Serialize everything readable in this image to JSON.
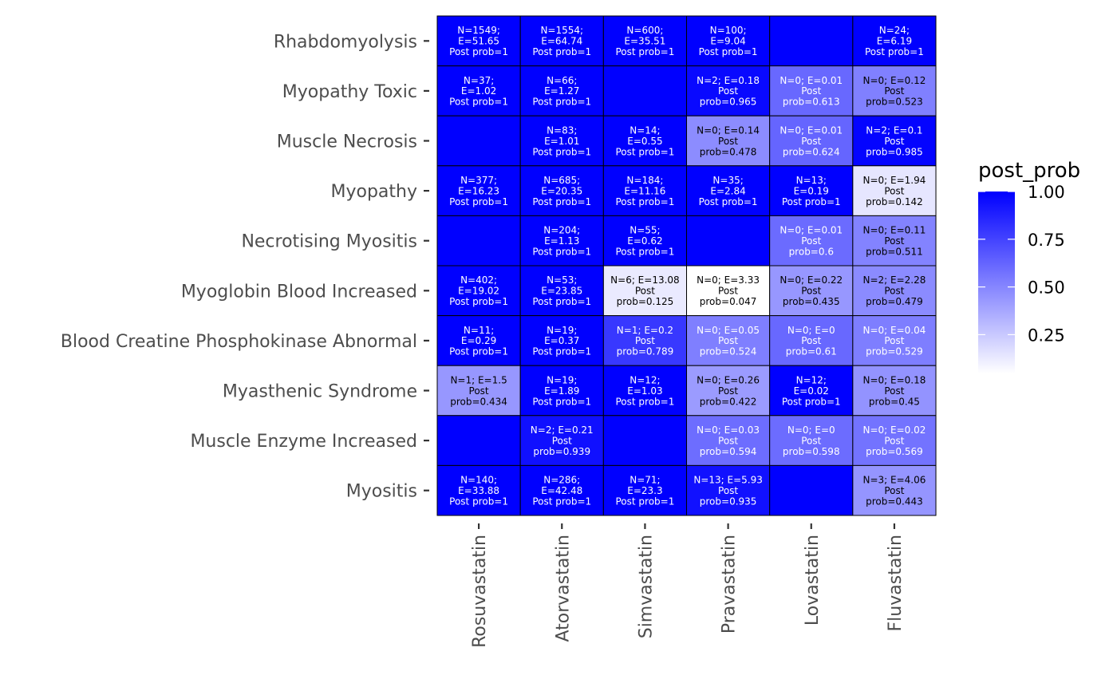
{
  "chart_data": {
    "type": "heatmap",
    "title": "",
    "xlabel": "",
    "ylabel": "",
    "x_categories": [
      "Rosuvastatin",
      "Atorvastatin",
      "Simvastatin",
      "Pravastatin",
      "Lovastatin",
      "Fluvastatin"
    ],
    "y_categories": [
      "Rhabdomyolysis",
      "Myopathy Toxic",
      "Muscle Necrosis",
      "Myopathy",
      "Necrotising Myositis",
      "Myoglobin Blood Increased",
      "Blood Creatine Phosphokinase Abnormal",
      "Myasthenic Syndrome",
      "Muscle Enzyme Increased",
      "Myositis"
    ],
    "values": [
      [
        1,
        1,
        1,
        1,
        1,
        1
      ],
      [
        1,
        1,
        1,
        0.965,
        0.613,
        0.523
      ],
      [
        1,
        1,
        1,
        0.478,
        0.624,
        0.985
      ],
      [
        1,
        1,
        1,
        1,
        1,
        0.142
      ],
      [
        1,
        1,
        1,
        1,
        0.6,
        0.511
      ],
      [
        1,
        1,
        0.125,
        0.047,
        0.435,
        0.479
      ],
      [
        1,
        1,
        0.789,
        0.524,
        0.61,
        0.529
      ],
      [
        0.434,
        1,
        1,
        0.422,
        1,
        0.45
      ],
      [
        1,
        0.939,
        1,
        0.594,
        0.598,
        0.569
      ],
      [
        1,
        1,
        1,
        0.935,
        1,
        0.443
      ]
    ],
    "labels": [
      [
        [
          "N=1549;",
          "E=51.65",
          "Post prob=1"
        ],
        [
          "N=1554;",
          "E=64.74",
          "Post prob=1"
        ],
        [
          "N=600;",
          "E=35.51",
          "Post prob=1"
        ],
        [
          "N=100;",
          "E=9.04",
          "Post prob=1"
        ],
        [],
        [
          "N=24;",
          "E=6.19",
          "Post prob=1"
        ]
      ],
      [
        [
          "N=37;",
          "E=1.02",
          "Post prob=1"
        ],
        [
          "N=66;",
          "E=1.27",
          "Post prob=1"
        ],
        [],
        [
          "N=2; E=0.18",
          "Post",
          "prob=0.965"
        ],
        [
          "N=0; E=0.01",
          "Post",
          "prob=0.613"
        ],
        [
          "N=0; E=0.12",
          "Post",
          "prob=0.523"
        ]
      ],
      [
        [],
        [
          "N=83;",
          "E=1.01",
          "Post prob=1"
        ],
        [
          "N=14;",
          "E=0.55",
          "Post prob=1"
        ],
        [
          "N=0; E=0.14",
          "Post",
          "prob=0.478"
        ],
        [
          "N=0; E=0.01",
          "Post",
          "prob=0.624"
        ],
        [
          "N=2; E=0.1",
          "Post",
          "prob=0.985"
        ]
      ],
      [
        [
          "N=377;",
          "E=16.23",
          "Post prob=1"
        ],
        [
          "N=685;",
          "E=20.35",
          "Post prob=1"
        ],
        [
          "N=184;",
          "E=11.16",
          "Post prob=1"
        ],
        [
          "N=35;",
          "E=2.84",
          "Post prob=1"
        ],
        [
          "N=13;",
          "E=0.19",
          "Post prob=1"
        ],
        [
          "N=0; E=1.94",
          "Post",
          "prob=0.142"
        ]
      ],
      [
        [],
        [
          "N=204;",
          "E=1.13",
          "Post prob=1"
        ],
        [
          "N=55;",
          "E=0.62",
          "Post prob=1"
        ],
        [],
        [
          "N=0; E=0.01",
          "Post",
          "prob=0.6"
        ],
        [
          "N=0; E=0.11",
          "Post",
          "prob=0.511"
        ]
      ],
      [
        [
          "N=402;",
          "E=19.02",
          "Post prob=1"
        ],
        [
          "N=53;",
          "E=23.85",
          "Post prob=1"
        ],
        [
          "N=6; E=13.08",
          "Post",
          "prob=0.125"
        ],
        [
          "N=0; E=3.33",
          "Post",
          "prob=0.047"
        ],
        [
          "N=0; E=0.22",
          "Post",
          "prob=0.435"
        ],
        [
          "N=2; E=2.28",
          "Post",
          "prob=0.479"
        ]
      ],
      [
        [
          "N=11;",
          "E=0.29",
          "Post prob=1"
        ],
        [
          "N=19;",
          "E=0.37",
          "Post prob=1"
        ],
        [
          "N=1; E=0.2",
          "Post",
          "prob=0.789"
        ],
        [
          "N=0; E=0.05",
          "Post",
          "prob=0.524"
        ],
        [
          "N=0; E=0",
          "Post",
          "prob=0.61"
        ],
        [
          "N=0; E=0.04",
          "Post",
          "prob=0.529"
        ]
      ],
      [
        [
          "N=1; E=1.5",
          "Post",
          "prob=0.434"
        ],
        [
          "N=19;",
          "E=1.89",
          "Post prob=1"
        ],
        [
          "N=12;",
          "E=1.03",
          "Post prob=1"
        ],
        [
          "N=0; E=0.26",
          "Post",
          "prob=0.422"
        ],
        [
          "N=12;",
          "E=0.02",
          "Post prob=1"
        ],
        [
          "N=0; E=0.18",
          "Post",
          "prob=0.45"
        ]
      ],
      [
        [],
        [
          "N=2; E=0.21",
          "Post",
          "prob=0.939"
        ],
        [],
        [
          "N=0; E=0.03",
          "Post",
          "prob=0.594"
        ],
        [
          "N=0; E=0",
          "Post",
          "prob=0.598"
        ],
        [
          "N=0; E=0.02",
          "Post",
          "prob=0.569"
        ]
      ],
      [
        [
          "N=140;",
          "E=33.88",
          "Post prob=1"
        ],
        [
          "N=286;",
          "E=42.48",
          "Post prob=1"
        ],
        [
          "N=71;",
          "E=23.3",
          "Post prob=1"
        ],
        [
          "N=13; E=5.93",
          "Post",
          "prob=0.935"
        ],
        [],
        [
          "N=3; E=4.06",
          "Post",
          "prob=0.443"
        ]
      ]
    ],
    "legend": {
      "title": "post_prob",
      "ticks": [
        0.25,
        0.5,
        0.75,
        1.0
      ],
      "tick_labels": [
        "0.25",
        "0.50",
        "0.75",
        "1.00"
      ],
      "range": [
        0.047,
        1.0
      ],
      "low_color": "#ffffff",
      "high_color": "#0000ff",
      "placement": "right"
    }
  }
}
